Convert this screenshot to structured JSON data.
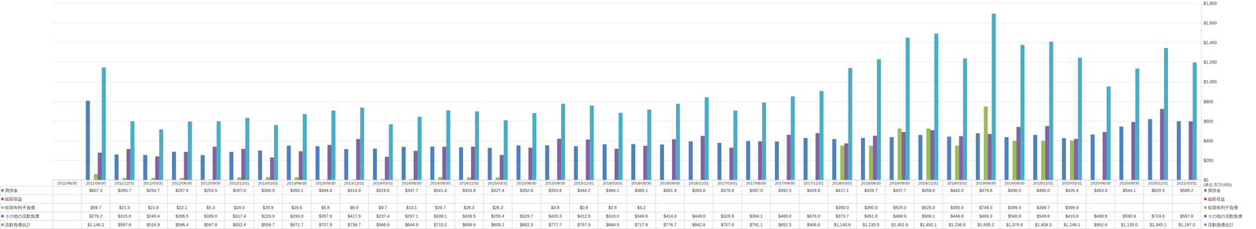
{
  "chart_data": {
    "type": "bar",
    "annotation": "(単位:百万USD)",
    "categories": [
      "2011/06/30",
      "2011/09/30",
      "2011/12/31",
      "2012/03/31",
      "2012/06/30",
      "2012/09/30",
      "2012/12/31",
      "2013/03/31",
      "2013/06/30",
      "2013/09/30",
      "2013/12/31",
      "2014/03/31",
      "2014/06/30",
      "2014/09/30",
      "2014/12/31",
      "2015/03/31",
      "2015/06/30",
      "2015/09/30",
      "2015/12/31",
      "2016/03/31",
      "2016/06/30",
      "2016/09/30",
      "2016/12/31",
      "2017/03/31",
      "2017/06/30",
      "2017/09/30",
      "2017/12/31",
      "2018/03/31",
      "2018/06/30",
      "2018/09/30",
      "2018/12/31",
      "2019/03/31",
      "2019/06/30",
      "2019/09/30",
      "2019/12/31",
      "2020/03/31",
      "2020/06/30",
      "2020/09/30",
      "2020/12/31",
      "2021/03/31"
    ],
    "series": [
      {
        "name": "買掛金",
        "color": "#4f81bd",
        "values": [
          null,
          807.3,
          260.7,
          254.7,
          287.8,
          253.5,
          287.0,
          300.9,
          350.1,
          344.4,
          314.8,
          319.8,
          337.7,
          341.4,
          333.8,
          327.4,
          352.6,
          353.6,
          344.2,
          364.1,
          366.1,
          361.9,
          393.8,
          378.9,
          397.0,
          392.5,
          428.8,
          417.1,
          428.7,
          437.7,
          459.0,
          442.0,
          476.6,
          436.5,
          460.0,
          426.4,
          463.9,
          544.1,
          620.5,
          599.2
        ],
        "value_labels": [
          null,
          "$807.3",
          "$260.7",
          "$254.7",
          "$287.8",
          "$253.5",
          "$287.0",
          "$300.9",
          "$350.1",
          "$344.4",
          "$314.8",
          "$319.8",
          "$337.7",
          "$341.4",
          "$333.8",
          "$327.4",
          "$352.6",
          "$353.6",
          "$344.2",
          "$364.1",
          "$366.1",
          "$361.9",
          "$393.8",
          "$378.9",
          "$397.0",
          "$392.5",
          "$428.8",
          "$417.1",
          "$428.7",
          "$437.7",
          "$459.0",
          "$442.0",
          "$476.6",
          "$436.5",
          "$460.0",
          "$426.4",
          "$463.9",
          "$544.1",
          "$620.5",
          "$599.2"
        ]
      },
      {
        "name": "繰延収益",
        "color": "#c0504d",
        "values": [
          null,
          null,
          null,
          null,
          null,
          null,
          null,
          null,
          null,
          null,
          null,
          null,
          null,
          null,
          null,
          null,
          null,
          null,
          null,
          null,
          null,
          null,
          null,
          null,
          null,
          null,
          null,
          null,
          null,
          null,
          null,
          null,
          null,
          null,
          null,
          null,
          null,
          null,
          null,
          null
        ],
        "value_labels": [
          null,
          null,
          null,
          null,
          null,
          null,
          null,
          null,
          null,
          null,
          null,
          null,
          null,
          null,
          null,
          null,
          null,
          null,
          null,
          null,
          null,
          null,
          null,
          null,
          null,
          null,
          null,
          null,
          null,
          null,
          null,
          null,
          null,
          null,
          null,
          null,
          null,
          null,
          null,
          null
        ]
      },
      {
        "name": "短期有利子負債",
        "color": "#9bbb59",
        "values": [
          null,
          59.7,
          21.3,
          21.8,
          22.1,
          5.3,
          28.0,
          28.9,
          28.6,
          5.6,
          6.0,
          9.7,
          10.1,
          29.7,
          26.3,
          26.3,
          null,
          3.8,
          0.8,
          2.8,
          3.2,
          null,
          null,
          null,
          null,
          null,
          null,
          350.0,
          350.0,
          525.0,
          525.0,
          350.0,
          749.3,
          399.5,
          399.7,
          399.9,
          null,
          null,
          null,
          null
        ],
        "value_labels": [
          null,
          "$59.7",
          "$21.3",
          "$21.8",
          "$22.1",
          "$5.3",
          "$28.0",
          "$28.9",
          "$28.6",
          "$5.6",
          "$6.0",
          "$9.7",
          "$10.1",
          "$29.7",
          "$26.3",
          "$26.3",
          null,
          "$3.8",
          "$0.8",
          "$2.8",
          "$3.2",
          null,
          null,
          null,
          null,
          null,
          null,
          "$350.0",
          "$350.0",
          "$525.0",
          "$525.0",
          "$350.0",
          "$749.3",
          "$399.5",
          "$399.7",
          "$399.9",
          null,
          null,
          null,
          null
        ]
      },
      {
        "name": "その他の流動負債",
        "color": "#8064a2",
        "values": [
          null,
          279.2,
          315.8,
          240.4,
          286.5,
          339.0,
          317.4,
          229.9,
          293.0,
          357.9,
          417.9,
          237.4,
          297.1,
          339.1,
          339.5,
          255.4,
          329.7,
          420.3,
          412.9,
          318.0,
          348.6,
          414.8,
          449.0,
          328.9,
          394.1,
          460.0,
          478.0,
          373.7,
          451.8,
          488.9,
          508.1,
          446.8,
          469.3,
          540.6,
          549.6,
          419.8,
          488.9,
          590.9,
          724.6,
          597.8
        ],
        "value_labels": [
          null,
          "$279.2",
          "$315.8",
          "$240.4",
          "$286.5",
          "$339.0",
          "$317.4",
          "$229.9",
          "$293.0",
          "$357.9",
          "$417.9",
          "$237.4",
          "$297.1",
          "$339.1",
          "$339.5",
          "$255.4",
          "$329.7",
          "$420.3",
          "$412.9",
          "$318.0",
          "$348.6",
          "$414.8",
          "$449.0",
          "$328.9",
          "$394.1",
          "$460.0",
          "$478.0",
          "$373.7",
          "$451.8",
          "$488.9",
          "$508.1",
          "$446.8",
          "$469.3",
          "$540.6",
          "$549.6",
          "$419.8",
          "$488.9",
          "$590.9",
          "$724.6",
          "$597.8"
        ]
      },
      {
        "name": "流動負債合計",
        "color": "#4bacc6",
        "values": [
          null,
          1146.2,
          597.8,
          516.9,
          596.4,
          597.8,
          632.4,
          559.7,
          671.7,
          707.9,
          738.7,
          566.9,
          644.9,
          710.2,
          699.6,
          609.1,
          682.3,
          777.7,
          757.9,
          684.9,
          717.9,
          776.7,
          842.8,
          707.8,
          791.1,
          852.5,
          906.8,
          1140.8,
          1230.5,
          1451.6,
          1492.1,
          1238.8,
          1695.2,
          1376.6,
          1409.3,
          1246.1,
          952.8,
          1135.0,
          1345.1,
          1197.0
        ],
        "value_labels": [
          null,
          "$1,146.2",
          "$597.8",
          "$516.9",
          "$596.4",
          "$597.8",
          "$632.4",
          "$559.7",
          "$671.7",
          "$707.9",
          "$738.7",
          "$566.9",
          "$644.9",
          "$710.2",
          "$699.6",
          "$609.1",
          "$682.3",
          "$777.7",
          "$757.9",
          "$684.9",
          "$717.9",
          "$776.7",
          "$842.8",
          "$707.8",
          "$791.1",
          "$852.5",
          "$906.8",
          "$1,140.8",
          "$1,230.5",
          "$1,451.6",
          "$1,492.1",
          "$1,238.8",
          "$1,695.2",
          "$1,376.6",
          "$1,409.3",
          "$1,246.1",
          "$952.8",
          "$1,135.0",
          "$1,345.1",
          "$1,197.0"
        ]
      }
    ],
    "ylim": [
      0,
      1800
    ],
    "yticks": [
      {
        "value": 0,
        "label": "$0"
      },
      {
        "value": 200,
        "label": "$200"
      },
      {
        "value": 400,
        "label": "$400"
      },
      {
        "value": 600,
        "label": "$600"
      },
      {
        "value": 800,
        "label": "$800"
      },
      {
        "value": 1000,
        "label": "$1,000"
      },
      {
        "value": 1200,
        "label": "$1,200"
      },
      {
        "value": 1400,
        "label": "$1,400"
      },
      {
        "value": 1600,
        "label": "$1,600"
      },
      {
        "value": 1800,
        "label": "$1,800"
      }
    ],
    "grid": true
  }
}
